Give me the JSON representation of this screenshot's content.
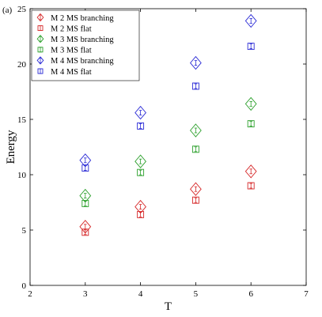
{
  "chart_data": {
    "type": "scatter",
    "panel_label": "(a)",
    "xlabel": "T",
    "ylabel": "Energy",
    "xlim": [
      2,
      7
    ],
    "ylim": [
      0,
      25
    ],
    "xticks": [
      2,
      3,
      4,
      5,
      6,
      7
    ],
    "yticks": [
      0,
      5,
      10,
      15,
      20,
      25
    ],
    "grid": false,
    "legend_position": "top-left",
    "series": [
      {
        "name": "M 2 MS branching",
        "color": "#d62728",
        "marker": "diamond",
        "x": [
          3,
          4,
          5,
          6
        ],
        "y": [
          5.3,
          7.1,
          8.7,
          10.3
        ]
      },
      {
        "name": "M 2 MS flat",
        "color": "#d62728",
        "marker": "square",
        "x": [
          3,
          4,
          5,
          6
        ],
        "y": [
          4.8,
          6.4,
          7.7,
          9.0
        ]
      },
      {
        "name": "M 3 MS branching",
        "color": "#2ca02c",
        "marker": "diamond",
        "x": [
          3,
          4,
          5,
          6
        ],
        "y": [
          8.1,
          11.2,
          14.0,
          16.4
        ]
      },
      {
        "name": "M 3 MS flat",
        "color": "#2ca02c",
        "marker": "square",
        "x": [
          3,
          4,
          5,
          6
        ],
        "y": [
          7.4,
          10.2,
          12.3,
          14.6
        ]
      },
      {
        "name": "M 4 MS branching",
        "color": "#2b2bd6",
        "marker": "diamond",
        "x": [
          3,
          4,
          5,
          6
        ],
        "y": [
          11.3,
          15.6,
          20.1,
          23.9
        ]
      },
      {
        "name": "M 4 MS flat",
        "color": "#2b2bd6",
        "marker": "square",
        "x": [
          3,
          4,
          5,
          6
        ],
        "y": [
          10.6,
          14.4,
          18.0,
          21.6
        ]
      }
    ]
  }
}
